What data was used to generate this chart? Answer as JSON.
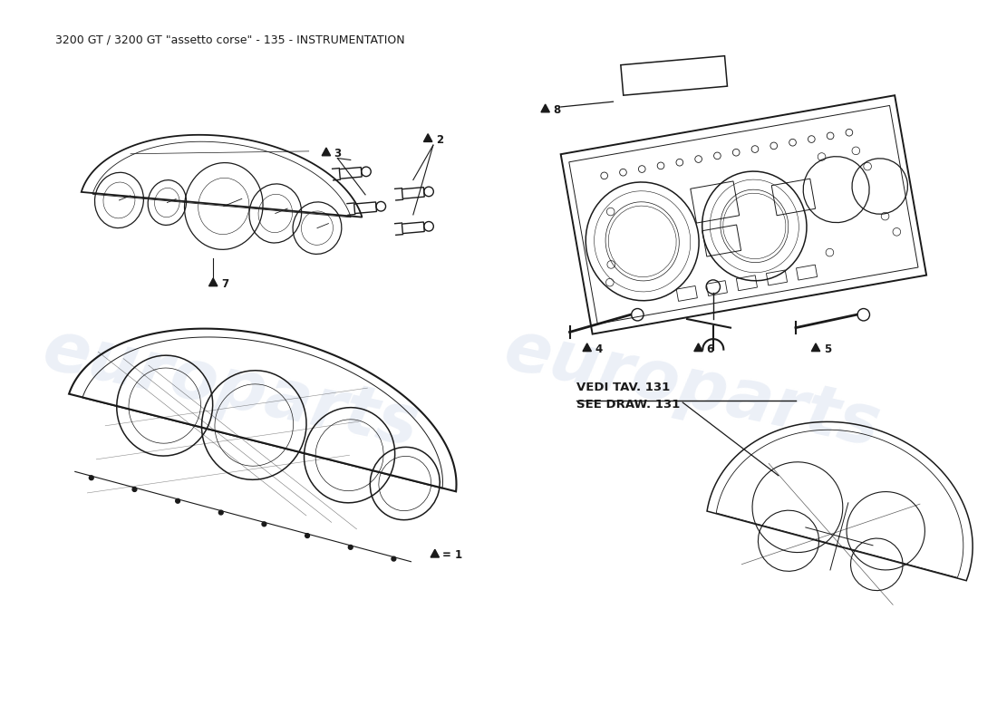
{
  "title": "3200 GT / 3200 GT \"assetto corse\" - 135 - INSTRUMENTATION",
  "background_color": "#ffffff",
  "watermark_text": "europarts",
  "watermark_color": "#c8d4e8",
  "line_color": "#1a1a1a",
  "title_fontsize": 9.0,
  "fig_width": 11.0,
  "fig_height": 8.0,
  "vedi_text_line1": "VEDI TAV. 131",
  "vedi_text_line2": "SEE DRAW. 131"
}
